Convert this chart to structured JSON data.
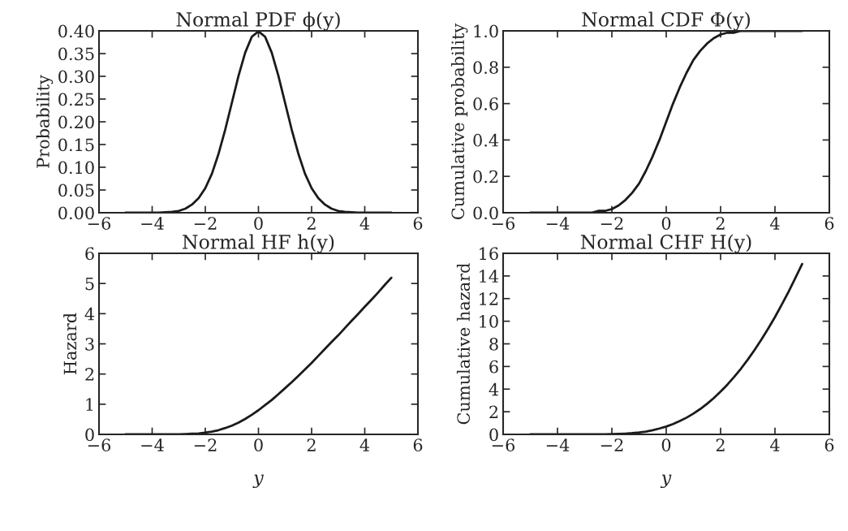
{
  "chart_data": [
    {
      "type": "line",
      "title": "Normal PDF ϕ(y)",
      "ylabel": "Probability",
      "grid": false,
      "x": [
        -5,
        -4.75,
        -4.5,
        -4.25,
        -4,
        -3.75,
        -3.5,
        -3.25,
        -3,
        -2.75,
        -2.5,
        -2.25,
        -2,
        -1.75,
        -1.5,
        -1.25,
        -1,
        -0.75,
        -0.5,
        -0.25,
        0,
        0.25,
        0.5,
        0.75,
        1,
        1.25,
        1.5,
        1.75,
        2,
        2.25,
        2.5,
        2.75,
        3,
        3.25,
        3.5,
        3.75,
        4,
        4.25,
        4.5,
        4.75,
        5
      ],
      "series": [
        {
          "color": "#1a1a1a",
          "values": [
            0,
            0,
            0,
            0,
            0,
            0,
            0.001,
            0.002,
            0.004,
            0.009,
            0.018,
            0.032,
            0.054,
            0.086,
            0.13,
            0.183,
            0.242,
            0.301,
            0.352,
            0.387,
            0.399,
            0.387,
            0.352,
            0.301,
            0.242,
            0.183,
            0.13,
            0.086,
            0.054,
            0.032,
            0.018,
            0.009,
            0.004,
            0.002,
            0.001,
            0,
            0,
            0,
            0,
            0,
            0
          ]
        }
      ],
      "xlim": [
        -6,
        6
      ],
      "xticks": [
        {
          "value": -6,
          "label": "−6"
        },
        {
          "value": -4,
          "label": "−4"
        },
        {
          "value": -2,
          "label": "−2"
        },
        0,
        2,
        4,
        6
      ],
      "ylim": [
        0,
        0.4
      ],
      "yticks": [
        {
          "value": 0,
          "label": "0.00"
        },
        {
          "value": 0.05,
          "label": "0.05"
        },
        {
          "value": 0.1,
          "label": "0.10"
        },
        {
          "value": 0.15,
          "label": "0.15"
        },
        {
          "value": 0.2,
          "label": "0.20"
        },
        {
          "value": 0.25,
          "label": "0.25"
        },
        {
          "value": 0.3,
          "label": "0.30"
        },
        {
          "value": 0.35,
          "label": "0.35"
        },
        {
          "value": 0.4,
          "label": "0.40"
        }
      ]
    },
    {
      "type": "line",
      "title": "Normal CDF Φ(y)",
      "ylabel": "Cumulative probability",
      "grid": false,
      "x": [
        -5,
        -4.75,
        -4.5,
        -4.25,
        -4,
        -3.75,
        -3.5,
        -3.25,
        -3,
        -2.75,
        -2.5,
        -2.25,
        -2,
        -1.75,
        -1.5,
        -1.25,
        -1,
        -0.75,
        -0.5,
        -0.25,
        0,
        0.25,
        0.5,
        0.75,
        1,
        1.25,
        1.5,
        1.75,
        2,
        2.25,
        2.5,
        2.75,
        3,
        3.25,
        3.5,
        3.75,
        4,
        4.25,
        4.5,
        4.75,
        5
      ],
      "series": [
        {
          "color": "#1a1a1a",
          "values": [
            0,
            0,
            0,
            0,
            0,
            0,
            0,
            0,
            0,
            0,
            0.01,
            0.01,
            0.02,
            0.04,
            0.07,
            0.11,
            0.16,
            0.23,
            0.31,
            0.4,
            0.5,
            0.6,
            0.69,
            0.77,
            0.84,
            0.89,
            0.93,
            0.96,
            0.98,
            0.99,
            0.99,
            1,
            1,
            1,
            1,
            1,
            1,
            1,
            1,
            1,
            1
          ]
        }
      ],
      "xlim": [
        -6,
        6
      ],
      "xticks": [
        {
          "value": -6,
          "label": "−6"
        },
        {
          "value": -4,
          "label": "−4"
        },
        {
          "value": -2,
          "label": "−2"
        },
        0,
        2,
        4,
        6
      ],
      "ylim": [
        0,
        1
      ],
      "yticks": [
        {
          "value": 0,
          "label": "0.0"
        },
        {
          "value": 0.2,
          "label": "0.2"
        },
        {
          "value": 0.4,
          "label": "0.4"
        },
        {
          "value": 0.6,
          "label": "0.6"
        },
        {
          "value": 0.8,
          "label": "0.8"
        },
        {
          "value": 1,
          "label": "1.0"
        }
      ]
    },
    {
      "type": "line",
      "title": "Normal HF h(y)",
      "ylabel": "Hazard",
      "xlabel": "y",
      "grid": false,
      "x": [
        -5,
        -4.75,
        -4.5,
        -4.25,
        -4,
        -3.75,
        -3.5,
        -3.25,
        -3,
        -2.75,
        -2.5,
        -2.25,
        -2,
        -1.75,
        -1.5,
        -1.25,
        -1,
        -0.75,
        -0.5,
        -0.25,
        0,
        0.25,
        0.5,
        0.75,
        1,
        1.25,
        1.5,
        1.75,
        2,
        2.25,
        2.5,
        2.75,
        3,
        3.25,
        3.5,
        3.75,
        4,
        4.25,
        4.5,
        4.75,
        5
      ],
      "series": [
        {
          "color": "#1a1a1a",
          "values": [
            0,
            0,
            0,
            0,
            0,
            0,
            0,
            0,
            0,
            0.01,
            0.02,
            0.03,
            0.06,
            0.09,
            0.14,
            0.21,
            0.29,
            0.39,
            0.51,
            0.65,
            0.8,
            0.97,
            1.14,
            1.33,
            1.53,
            1.73,
            1.94,
            2.15,
            2.37,
            2.6,
            2.83,
            3.06,
            3.28,
            3.52,
            3.76,
            3.99,
            4.23,
            4.46,
            4.7,
            4.95,
            5.19
          ]
        }
      ],
      "xlim": [
        -6,
        6
      ],
      "xticks": [
        {
          "value": -6,
          "label": "−6"
        },
        {
          "value": -4,
          "label": "−4"
        },
        {
          "value": -2,
          "label": "−2"
        },
        0,
        2,
        4,
        6
      ],
      "ylim": [
        0,
        6
      ],
      "yticks": [
        0,
        1,
        2,
        3,
        4,
        5,
        6
      ]
    },
    {
      "type": "line",
      "title": "Normal CHF H(y)",
      "ylabel": "Cumulative hazard",
      "xlabel": "y",
      "grid": false,
      "x": [
        -5,
        -4.75,
        -4.5,
        -4.25,
        -4,
        -3.75,
        -3.5,
        -3.25,
        -3,
        -2.75,
        -2.5,
        -2.25,
        -2,
        -1.75,
        -1.5,
        -1.25,
        -1,
        -0.75,
        -0.5,
        -0.25,
        0,
        0.25,
        0.5,
        0.75,
        1,
        1.25,
        1.5,
        1.75,
        2,
        2.25,
        2.5,
        2.75,
        3,
        3.25,
        3.5,
        3.75,
        4,
        4.25,
        4.5,
        4.75,
        5
      ],
      "series": [
        {
          "color": "#1a1a1a",
          "values": [
            0,
            0,
            0,
            0,
            0,
            0,
            0,
            0,
            0,
            0,
            0.01,
            0.01,
            0.02,
            0.04,
            0.07,
            0.11,
            0.17,
            0.25,
            0.37,
            0.52,
            0.69,
            0.91,
            1.18,
            1.48,
            1.84,
            2.24,
            2.7,
            3.21,
            3.78,
            4.4,
            5.08,
            5.81,
            6.61,
            7.46,
            8.37,
            9.35,
            10.37,
            11.47,
            12.6,
            13.82,
            15.06
          ]
        }
      ],
      "xlim": [
        -6,
        6
      ],
      "xticks": [
        {
          "value": -6,
          "label": "−6"
        },
        {
          "value": -4,
          "label": "−4"
        },
        {
          "value": -2,
          "label": "−2"
        },
        0,
        2,
        4,
        6
      ],
      "ylim": [
        0,
        16
      ],
      "yticks": [
        0,
        2,
        4,
        6,
        8,
        10,
        12,
        14,
        16
      ]
    }
  ]
}
